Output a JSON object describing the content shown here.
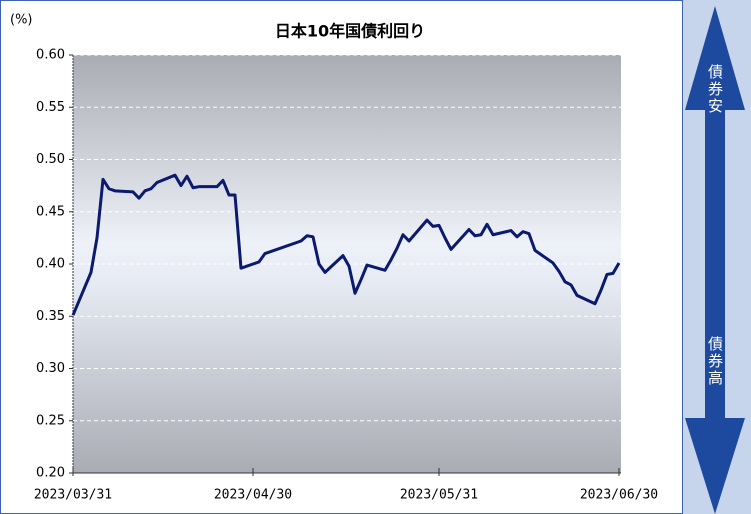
{
  "chart_data": {
    "type": "line",
    "title": "日本10年国債利回り",
    "y_unit": "(%)",
    "annotations": [
      "債券安",
      "債券高"
    ],
    "x": [
      "2023/03/31",
      "2023/04/03",
      "2023/04/04",
      "2023/04/05",
      "2023/04/06",
      "2023/04/07",
      "2023/04/10",
      "2023/04/11",
      "2023/04/12",
      "2023/04/13",
      "2023/04/14",
      "2023/04/17",
      "2023/04/18",
      "2023/04/19",
      "2023/04/20",
      "2023/04/21",
      "2023/04/24",
      "2023/04/25",
      "2023/04/26",
      "2023/04/27",
      "2023/04/28",
      "2023/05/01",
      "2023/05/02",
      "2023/05/08",
      "2023/05/09",
      "2023/05/10",
      "2023/05/11",
      "2023/05/12",
      "2023/05/15",
      "2023/05/16",
      "2023/05/17",
      "2023/05/18",
      "2023/05/19",
      "2023/05/22",
      "2023/05/23",
      "2023/05/24",
      "2023/05/25",
      "2023/05/26",
      "2023/05/29",
      "2023/05/30",
      "2023/05/31",
      "2023/06/01",
      "2023/06/02",
      "2023/06/05",
      "2023/06/06",
      "2023/06/07",
      "2023/06/08",
      "2023/06/09",
      "2023/06/12",
      "2023/06/13",
      "2023/06/14",
      "2023/06/15",
      "2023/06/16",
      "2023/06/19",
      "2023/06/20",
      "2023/06/21",
      "2023/06/22",
      "2023/06/23",
      "2023/06/26",
      "2023/06/27",
      "2023/06/28",
      "2023/06/29",
      "2023/06/30"
    ],
    "series": [
      {
        "name": "日本10年国債利回り",
        "color": "#0a1a6e",
        "values": [
          0.351,
          0.392,
          0.425,
          0.481,
          0.472,
          0.47,
          0.469,
          0.463,
          0.47,
          0.472,
          0.478,
          0.485,
          0.475,
          0.484,
          0.473,
          0.474,
          0.474,
          0.48,
          0.466,
          0.466,
          0.396,
          0.402,
          0.41,
          0.422,
          0.427,
          0.426,
          0.4,
          0.392,
          0.408,
          0.398,
          0.372,
          0.385,
          0.399,
          0.394,
          0.404,
          0.415,
          0.428,
          0.422,
          0.442,
          0.436,
          0.437,
          0.425,
          0.414,
          0.433,
          0.427,
          0.428,
          0.438,
          0.428,
          0.432,
          0.426,
          0.431,
          0.429,
          0.413,
          0.401,
          0.393,
          0.383,
          0.38,
          0.37,
          0.362,
          0.375,
          0.39,
          0.391,
          0.401
        ]
      }
    ],
    "xlim": [
      "2023/03/31",
      "2023/06/30"
    ],
    "xticks": [
      "2023/03/31",
      "2023/04/30",
      "2023/05/31",
      "2023/06/30"
    ],
    "ylim": [
      0.2,
      0.6
    ],
    "yticks": [
      {
        "value": 0.2,
        "label": "0.20"
      },
      0.25,
      {
        "value": 0.3,
        "label": "0.30"
      },
      0.35,
      {
        "value": 0.4,
        "label": "0.40"
      },
      0.45,
      {
        "value": 0.5,
        "label": "0.50"
      },
      0.55,
      {
        "value": 0.6,
        "label": "0.60"
      }
    ],
    "grid": true
  }
}
